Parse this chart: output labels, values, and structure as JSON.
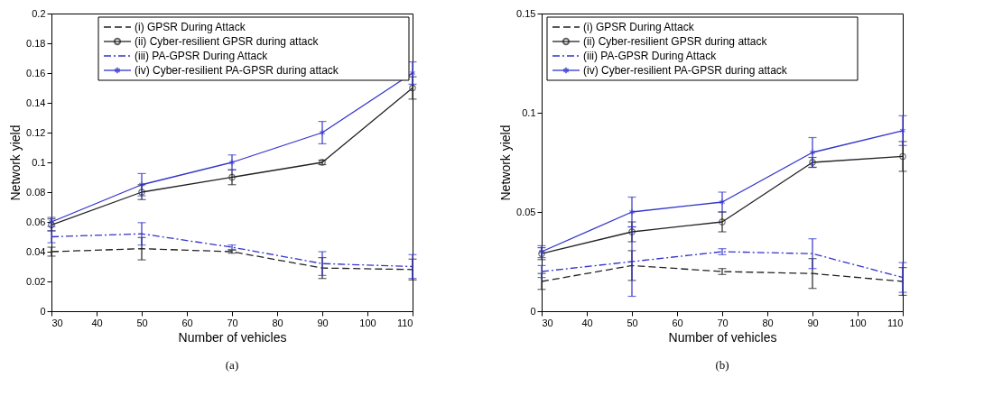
{
  "chart_data": [
    {
      "type": "line",
      "xlabel": "Number of vehicles",
      "ylabel": "Network yield",
      "annotations": [
        "(a)"
      ],
      "x": [
        30,
        50,
        70,
        90,
        110
      ],
      "xlim": [
        30,
        110
      ],
      "xticks": [
        30,
        40,
        50,
        60,
        70,
        80,
        90,
        100,
        110
      ],
      "ylim": [
        0,
        0.2
      ],
      "yticks": [
        0,
        0.02,
        0.04,
        0.06,
        0.08,
        0.1,
        0.12,
        0.14,
        0.16,
        0.18,
        0.2
      ],
      "grid": false,
      "legend": "top right",
      "series": [
        {
          "name": "(i) GPSR During Attack",
          "color": "#222222",
          "line_style": "dashed",
          "marker": "none",
          "values": [
            0.04,
            0.042,
            0.04,
            0.029,
            0.028
          ],
          "errors": [
            0.003,
            0.0075,
            0.001,
            0.007,
            0.007
          ]
        },
        {
          "name": "(ii) Cyber-resilient GPSR during attack",
          "color": "#222222",
          "line_style": "solid",
          "marker": "circle",
          "values": [
            0.058,
            0.08,
            0.09,
            0.1,
            0.15
          ],
          "errors": [
            0.004,
            0.005,
            0.005,
            0.0015,
            0.0075
          ]
        },
        {
          "name": "(iii) PA-GPSR During Attack",
          "color": "#3333cc",
          "line_style": "dashdot",
          "marker": "none",
          "values": [
            0.05,
            0.052,
            0.043,
            0.032,
            0.03
          ],
          "errors": [
            0.004,
            0.0075,
            0.0015,
            0.008,
            0.008
          ]
        },
        {
          "name": "(iv) Cyber-resilient PA-GPSR during attack",
          "color": "#3333cc",
          "line_style": "solid",
          "marker": "cross",
          "values": [
            0.06,
            0.085,
            0.1,
            0.12,
            0.16
          ],
          "errors": [
            0.003,
            0.0075,
            0.005,
            0.0075,
            0.0075
          ]
        }
      ]
    },
    {
      "type": "line",
      "xlabel": "Number of vehicles",
      "ylabel": "Network yield",
      "annotations": [
        "(b)"
      ],
      "x": [
        30,
        50,
        70,
        90,
        110
      ],
      "xlim": [
        30,
        110
      ],
      "xticks": [
        30,
        40,
        50,
        60,
        70,
        80,
        90,
        100,
        110
      ],
      "ylim": [
        0,
        0.15
      ],
      "yticks": [
        0,
        0.05,
        0.1,
        0.15
      ],
      "grid": false,
      "legend": "top left",
      "series": [
        {
          "name": "(i) GPSR During Attack",
          "color": "#222222",
          "line_style": "dashed",
          "marker": "none",
          "values": [
            0.015,
            0.023,
            0.02,
            0.019,
            0.015
          ],
          "errors": [
            0.004,
            0.0075,
            0.0015,
            0.0075,
            0.007
          ]
        },
        {
          "name": "(ii) Cyber-resilient GPSR during attack",
          "color": "#222222",
          "line_style": "solid",
          "marker": "circle",
          "values": [
            0.029,
            0.04,
            0.045,
            0.075,
            0.078
          ],
          "errors": [
            0.003,
            0.005,
            0.005,
            0.0025,
            0.0075
          ]
        },
        {
          "name": "(iii) PA-GPSR During Attack",
          "color": "#3333cc",
          "line_style": "dashdot",
          "marker": "none",
          "values": [
            0.02,
            0.025,
            0.03,
            0.029,
            0.017
          ],
          "errors": [
            0.003,
            0.0175,
            0.0015,
            0.0075,
            0.0075
          ]
        },
        {
          "name": "(iv) Cyber-resilient PA-GPSR during attack",
          "color": "#3333cc",
          "line_style": "solid",
          "marker": "cross",
          "values": [
            0.03,
            0.05,
            0.055,
            0.08,
            0.091
          ],
          "errors": [
            0.003,
            0.0075,
            0.005,
            0.0075,
            0.0075
          ]
        }
      ]
    }
  ]
}
